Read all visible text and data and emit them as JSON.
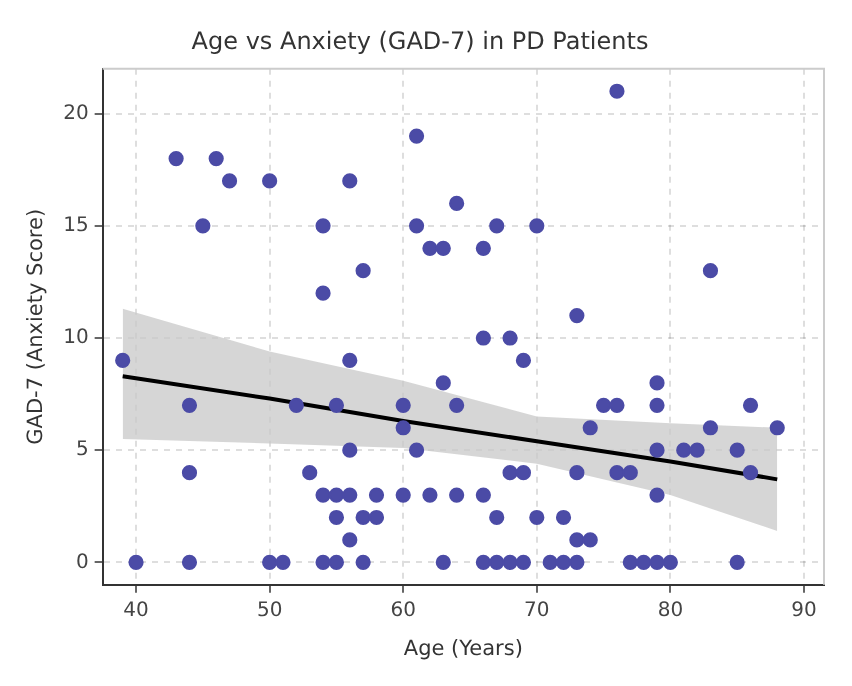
{
  "chart_data": {
    "type": "scatter",
    "title": "Age vs Anxiety (GAD-7) in PD Patients",
    "xlabel": "Age (Years)",
    "ylabel": "GAD-7 (Anxiety Score)",
    "xlim": [
      37.5,
      91.5
    ],
    "xticks": [
      40,
      50,
      60,
      70,
      80,
      90
    ],
    "ylim": [
      -1,
      22
    ],
    "yticks": [
      0,
      5,
      10,
      15,
      20
    ],
    "grid": true,
    "legend": false,
    "marker": "circle",
    "series": [
      {
        "color": "#4b4ba6",
        "x": [
          43,
          46,
          47,
          50,
          56,
          45,
          54,
          61,
          64,
          61,
          62,
          63,
          57,
          54,
          76,
          66,
          67,
          70,
          83,
          73,
          39,
          44,
          52,
          55,
          56,
          60,
          60,
          63,
          64,
          56,
          61,
          44,
          53,
          54,
          55,
          56,
          58,
          60,
          62,
          64,
          55,
          57,
          58,
          56,
          40,
          44,
          50,
          51,
          54,
          55,
          57,
          63,
          66,
          68,
          69,
          79,
          75,
          76,
          79,
          86,
          74,
          83,
          88,
          79,
          81,
          82,
          85,
          68,
          69,
          73,
          76,
          77,
          86,
          66,
          79,
          67,
          70,
          72,
          73,
          74,
          66,
          67,
          68,
          69,
          71,
          72,
          73,
          77,
          78,
          79,
          80,
          85
        ],
        "values": [
          18,
          18,
          17,
          17,
          17,
          15,
          15,
          19,
          16,
          15,
          14,
          14,
          13,
          12,
          21,
          14,
          15,
          15,
          13,
          11,
          9,
          7,
          7,
          7,
          9,
          7,
          6,
          8,
          7,
          5,
          5,
          4,
          4,
          3,
          3,
          3,
          3,
          3,
          3,
          3,
          2,
          2,
          2,
          1,
          0,
          0,
          0,
          0,
          0,
          0,
          0,
          0,
          10,
          10,
          9,
          8,
          7,
          7,
          7,
          7,
          6,
          6,
          6,
          5,
          5,
          5,
          5,
          4,
          4,
          4,
          4,
          4,
          4,
          3,
          3,
          2,
          2,
          2,
          1,
          1,
          0,
          0,
          0,
          0,
          0,
          0,
          0,
          0,
          0,
          0,
          0,
          0
        ]
      },
      {
        "type": "line",
        "color": "#000000",
        "line_style": "solid",
        "marker": "none",
        "x": [
          39,
          50,
          60,
          70,
          80,
          88
        ],
        "values": [
          8.3,
          7.3,
          6.3,
          5.4,
          4.5,
          3.7
        ],
        "lower": [
          5.5,
          5.3,
          5.1,
          4.4,
          3.0,
          1.4
        ],
        "upper": [
          11.3,
          9.4,
          8.1,
          6.5,
          6.2,
          6.0
        ]
      }
    ]
  }
}
